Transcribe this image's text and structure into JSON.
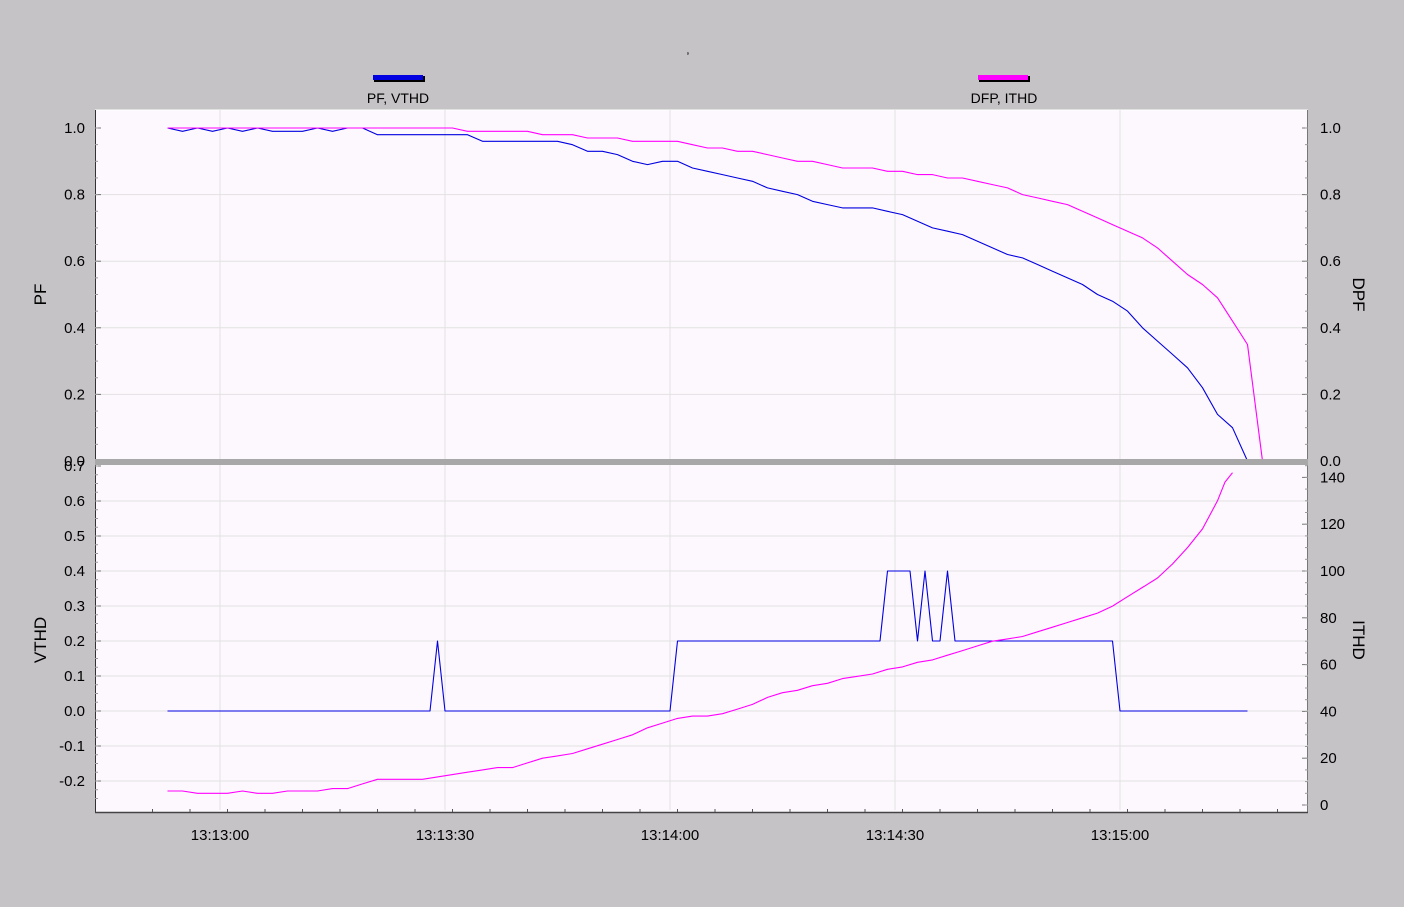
{
  "title_mark": "ʼ",
  "legend": {
    "left": {
      "label": "PF, VTHD",
      "color": "#0000e0"
    },
    "right": {
      "label": "DFP, ITHD",
      "color": "#ff00ff"
    }
  },
  "colors": {
    "background": "#c6c3c6",
    "plot_background": "#fdf8fd",
    "grid": "#e2e2e2",
    "divider": "#a8a8a8",
    "blue_series": "#0000e0",
    "magenta_series": "#ff00ff"
  },
  "chart_data": [
    {
      "type": "line",
      "panel": "top",
      "ylabel": "PF",
      "y2label": "DPF",
      "ylim": [
        0,
        1
      ],
      "y2lim": [
        0,
        1
      ],
      "yticks": [
        "0.0",
        "0.2",
        "0.4",
        "0.6",
        "0.8",
        "1.0"
      ],
      "y2ticks": [
        "0.0",
        "0.2",
        "0.4",
        "0.6",
        "0.8",
        "1.0"
      ],
      "series": [
        {
          "name": "PF",
          "axis": "left",
          "color": "#0000e0",
          "x": [
            "13:12:53",
            "13:12:55",
            "13:12:57",
            "13:12:59",
            "13:13:01",
            "13:13:03",
            "13:13:05",
            "13:13:07",
            "13:13:09",
            "13:13:11",
            "13:13:13",
            "13:13:15",
            "13:13:17",
            "13:13:19",
            "13:13:21",
            "13:13:23",
            "13:13:25",
            "13:13:27",
            "13:13:29",
            "13:13:31",
            "13:13:33",
            "13:13:35",
            "13:13:37",
            "13:13:39",
            "13:13:41",
            "13:13:43",
            "13:13:45",
            "13:13:47",
            "13:13:49",
            "13:13:51",
            "13:13:53",
            "13:13:55",
            "13:13:57",
            "13:13:59",
            "13:14:01",
            "13:14:03",
            "13:14:05",
            "13:14:07",
            "13:14:09",
            "13:14:11",
            "13:14:13",
            "13:14:15",
            "13:14:17",
            "13:14:19",
            "13:14:21",
            "13:14:23",
            "13:14:25",
            "13:14:27",
            "13:14:29",
            "13:14:31",
            "13:14:33",
            "13:14:35",
            "13:14:37",
            "13:14:39",
            "13:14:41",
            "13:14:43",
            "13:14:45",
            "13:14:47",
            "13:14:49",
            "13:14:51",
            "13:14:53",
            "13:14:55",
            "13:14:57",
            "13:14:59",
            "13:15:01",
            "13:15:03",
            "13:15:05",
            "13:15:07",
            "13:15:09",
            "13:15:11",
            "13:15:13",
            "13:15:15",
            "13:15:17",
            "13:15:19"
          ],
          "values": [
            1.0,
            0.99,
            1.0,
            0.99,
            1.0,
            0.99,
            1.0,
            0.99,
            0.99,
            0.99,
            1.0,
            0.99,
            1.0,
            1.0,
            0.98,
            0.98,
            0.98,
            0.98,
            0.98,
            0.98,
            0.98,
            0.96,
            0.96,
            0.96,
            0.96,
            0.96,
            0.96,
            0.95,
            0.93,
            0.93,
            0.92,
            0.9,
            0.89,
            0.9,
            0.9,
            0.88,
            0.87,
            0.86,
            0.85,
            0.84,
            0.82,
            0.81,
            0.8,
            0.78,
            0.77,
            0.76,
            0.76,
            0.76,
            0.75,
            0.74,
            0.72,
            0.7,
            0.69,
            0.68,
            0.66,
            0.64,
            0.62,
            0.61,
            0.59,
            0.57,
            0.55,
            0.53,
            0.5,
            0.48,
            0.45,
            0.4,
            0.36,
            0.32,
            0.28,
            0.22,
            0.14,
            0.1,
            0.0,
            0.0
          ]
        },
        {
          "name": "DPF",
          "axis": "right",
          "color": "#ff00ff",
          "x": [
            "13:12:53",
            "13:12:55",
            "13:12:57",
            "13:12:59",
            "13:13:01",
            "13:13:03",
            "13:13:05",
            "13:13:07",
            "13:13:09",
            "13:13:11",
            "13:13:13",
            "13:13:15",
            "13:13:17",
            "13:13:19",
            "13:13:21",
            "13:13:23",
            "13:13:25",
            "13:13:27",
            "13:13:29",
            "13:13:31",
            "13:13:33",
            "13:13:35",
            "13:13:37",
            "13:13:39",
            "13:13:41",
            "13:13:43",
            "13:13:45",
            "13:13:47",
            "13:13:49",
            "13:13:51",
            "13:13:53",
            "13:13:55",
            "13:13:57",
            "13:13:59",
            "13:14:01",
            "13:14:03",
            "13:14:05",
            "13:14:07",
            "13:14:09",
            "13:14:11",
            "13:14:13",
            "13:14:15",
            "13:14:17",
            "13:14:19",
            "13:14:21",
            "13:14:23",
            "13:14:25",
            "13:14:27",
            "13:14:29",
            "13:14:31",
            "13:14:33",
            "13:14:35",
            "13:14:37",
            "13:14:39",
            "13:14:41",
            "13:14:43",
            "13:14:45",
            "13:14:47",
            "13:14:49",
            "13:14:51",
            "13:14:53",
            "13:14:55",
            "13:14:57",
            "13:14:59",
            "13:15:01",
            "13:15:03",
            "13:15:05",
            "13:15:07",
            "13:15:09",
            "13:15:11",
            "13:15:13",
            "13:15:15",
            "13:15:17",
            "13:15:19"
          ],
          "values": [
            1.0,
            1.0,
            1.0,
            1.0,
            1.0,
            1.0,
            1.0,
            1.0,
            1.0,
            1.0,
            1.0,
            1.0,
            1.0,
            1.0,
            1.0,
            1.0,
            1.0,
            1.0,
            1.0,
            1.0,
            0.99,
            0.99,
            0.99,
            0.99,
            0.99,
            0.98,
            0.98,
            0.98,
            0.97,
            0.97,
            0.97,
            0.96,
            0.96,
            0.96,
            0.96,
            0.95,
            0.94,
            0.94,
            0.93,
            0.93,
            0.92,
            0.91,
            0.9,
            0.9,
            0.89,
            0.88,
            0.88,
            0.88,
            0.87,
            0.87,
            0.86,
            0.86,
            0.85,
            0.85,
            0.84,
            0.83,
            0.82,
            0.8,
            0.79,
            0.78,
            0.77,
            0.75,
            0.73,
            0.71,
            0.69,
            0.67,
            0.64,
            0.6,
            0.56,
            0.53,
            0.49,
            0.42,
            0.35,
            0.0
          ]
        }
      ]
    },
    {
      "type": "line",
      "panel": "bottom",
      "ylabel": "VTHD",
      "y2label": "ITHD",
      "xlabel": "",
      "ylim": [
        -0.27,
        0.71
      ],
      "y2lim": [
        0,
        145
      ],
      "yticks": [
        "-0.2",
        "-0.1",
        "0.0",
        "0.1",
        "0.2",
        "0.3",
        "0.4",
        "0.5",
        "0.6",
        "0.7"
      ],
      "y2ticks": [
        "0",
        "20",
        "40",
        "60",
        "80",
        "100",
        "120",
        "140"
      ],
      "xticks": [
        "13:13:00",
        "13:13:30",
        "13:14:00",
        "13:14:30",
        "13:15:00"
      ],
      "series": [
        {
          "name": "VTHD",
          "axis": "left",
          "color": "#0000e0",
          "x": [
            "13:12:53",
            "13:13:28",
            "13:13:29",
            "13:13:30",
            "13:14:00",
            "13:14:01",
            "13:14:28",
            "13:14:29",
            "13:14:32",
            "13:14:33",
            "13:14:34",
            "13:14:35",
            "13:14:36",
            "13:14:37",
            "13:14:38",
            "13:14:39",
            "13:14:40",
            "13:14:41",
            "13:14:59",
            "13:15:00",
            "13:15:17"
          ],
          "values": [
            0.0,
            0.0,
            0.2,
            0.0,
            0.0,
            0.2,
            0.2,
            0.4,
            0.4,
            0.2,
            0.4,
            0.2,
            0.2,
            0.4,
            0.2,
            0.2,
            0.2,
            0.2,
            0.2,
            0.0,
            0.0
          ]
        },
        {
          "name": "ITHD",
          "axis": "right",
          "color": "#ff00ff",
          "x": [
            "13:12:53",
            "13:12:55",
            "13:12:57",
            "13:12:59",
            "13:13:01",
            "13:13:03",
            "13:13:05",
            "13:13:07",
            "13:13:09",
            "13:13:11",
            "13:13:13",
            "13:13:15",
            "13:13:17",
            "13:13:19",
            "13:13:21",
            "13:13:23",
            "13:13:25",
            "13:13:27",
            "13:13:29",
            "13:13:31",
            "13:13:33",
            "13:13:35",
            "13:13:37",
            "13:13:39",
            "13:13:41",
            "13:13:43",
            "13:13:45",
            "13:13:47",
            "13:13:49",
            "13:13:51",
            "13:13:53",
            "13:13:55",
            "13:13:57",
            "13:13:59",
            "13:14:01",
            "13:14:03",
            "13:14:05",
            "13:14:07",
            "13:14:09",
            "13:14:11",
            "13:14:13",
            "13:14:15",
            "13:14:17",
            "13:14:19",
            "13:14:21",
            "13:14:23",
            "13:14:25",
            "13:14:27",
            "13:14:29",
            "13:14:31",
            "13:14:33",
            "13:14:35",
            "13:14:37",
            "13:14:39",
            "13:14:41",
            "13:14:43",
            "13:14:45",
            "13:14:47",
            "13:14:49",
            "13:14:51",
            "13:14:53",
            "13:14:55",
            "13:14:57",
            "13:14:59",
            "13:15:01",
            "13:15:03",
            "13:15:05",
            "13:15:07",
            "13:15:09",
            "13:15:11",
            "13:15:13",
            "13:15:14",
            "13:15:15"
          ],
          "values": [
            6,
            6,
            5,
            5,
            5,
            6,
            5,
            5,
            6,
            6,
            6,
            7,
            7,
            9,
            11,
            11,
            11,
            11,
            12,
            13,
            14,
            15,
            16,
            16,
            18,
            20,
            21,
            22,
            24,
            26,
            28,
            30,
            33,
            35,
            37,
            38,
            38,
            39,
            41,
            43,
            46,
            48,
            49,
            51,
            52,
            54,
            55,
            56,
            58,
            59,
            61,
            62,
            64,
            66,
            68,
            70,
            71,
            72,
            74,
            76,
            78,
            80,
            82,
            85,
            89,
            93,
            97,
            103,
            110,
            118,
            130,
            138,
            142
          ]
        }
      ]
    }
  ]
}
